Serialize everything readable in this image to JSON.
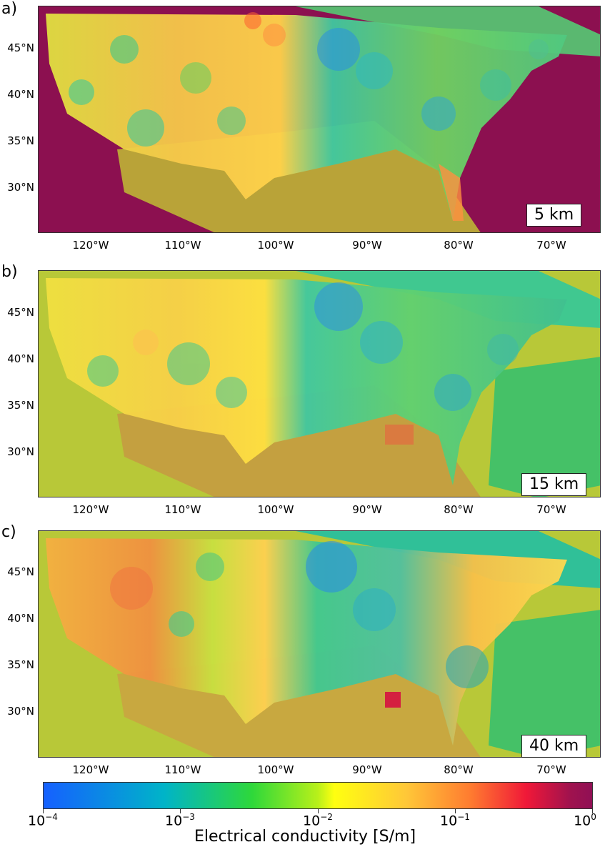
{
  "panels": [
    {
      "label": "a)",
      "depth": "5 km"
    },
    {
      "label": "b)",
      "depth": "15 km"
    },
    {
      "label": "c)",
      "depth": "40 km"
    }
  ],
  "lat_ticks": [
    "45°N",
    "40°N",
    "35°N",
    "30°N"
  ],
  "lon_ticks": [
    "120°W",
    "110°W",
    "100°W",
    "90°W",
    "80°W",
    "70°W"
  ],
  "colorbar": {
    "label": "Electrical conductivity [S/m]",
    "ticks": [
      {
        "base": "10",
        "exp": "−4"
      },
      {
        "base": "10",
        "exp": "−3"
      },
      {
        "base": "10",
        "exp": "−2"
      },
      {
        "base": "10",
        "exp": "−1"
      },
      {
        "base": "10",
        "exp": "0"
      }
    ],
    "scale": "log",
    "range": [
      0.0001,
      1
    ],
    "colors": [
      "#1560ff",
      "#00b4c8",
      "#2ed83a",
      "#ffff10",
      "#ffc838",
      "#ff7a30",
      "#f01838",
      "#901055"
    ]
  }
}
